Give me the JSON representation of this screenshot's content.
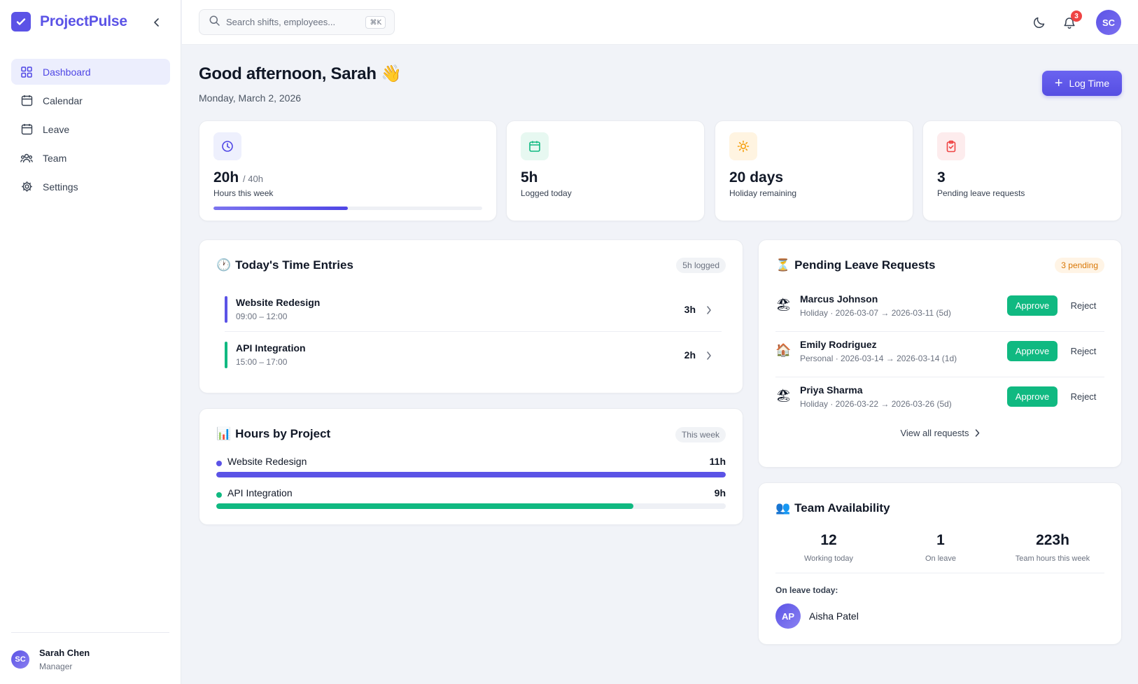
{
  "app": {
    "name": "ProjectPulse"
  },
  "sidebar": {
    "items": [
      {
        "label": "Dashboard",
        "icon": "grid-icon",
        "active": true
      },
      {
        "label": "Calendar",
        "icon": "calendar-icon"
      },
      {
        "label": "Leave",
        "icon": "calendar-icon"
      },
      {
        "label": "Team",
        "icon": "users-icon"
      },
      {
        "label": "Settings",
        "icon": "gear-icon"
      }
    ],
    "user": {
      "initials": "SC",
      "name": "Sarah Chen",
      "role": "Manager"
    }
  },
  "topbar": {
    "search_placeholder": "Search shifts, employees...",
    "shortcut": "⌘K",
    "notification_count": "3",
    "avatar_initials": "SC"
  },
  "header": {
    "greeting": "Good afternoon, Sarah 👋",
    "date": "Monday, March 2, 2026",
    "log_time_label": "Log Time"
  },
  "stats": [
    {
      "value": "20h",
      "sub": "/ 40h",
      "label": "Hours this week",
      "progress": 0.5,
      "color": "#4f46e5",
      "bg": "#eef0fd"
    },
    {
      "value": "5h",
      "sub": "",
      "label": "Logged today",
      "color": "#10b981",
      "bg": "#e7f8f1"
    },
    {
      "value": "20 days",
      "sub": "",
      "label": "Holiday remaining",
      "color": "#f59e0b",
      "bg": "#fff4e1"
    },
    {
      "value": "3",
      "sub": "",
      "label": "Pending leave requests",
      "color": "#ef4444",
      "bg": "#fdeced"
    }
  ],
  "time_entries": {
    "title": "Today's Time Entries",
    "emoji": "🕐",
    "badge": "5h logged",
    "entries": [
      {
        "name": "Website Redesign",
        "time": "09:00 – 12:00",
        "hours": "3h",
        "color": "#5b53e6"
      },
      {
        "name": "API Integration",
        "time": "15:00 – 17:00",
        "hours": "2h",
        "color": "#10b981"
      }
    ]
  },
  "hours_by_project": {
    "title": "Hours by Project",
    "emoji": "📊",
    "badge": "This week",
    "projects": [
      {
        "name": "Website Redesign",
        "hours": "11h",
        "fraction": 1.0,
        "color": "#5b53e6"
      },
      {
        "name": "API Integration",
        "hours": "9h",
        "fraction": 0.818,
        "color": "#10b981"
      }
    ]
  },
  "pending_leave": {
    "title": "Pending Leave Requests",
    "emoji": "⏳",
    "badge": "3 pending",
    "approve_label": "Approve",
    "reject_label": "Reject",
    "requests": [
      {
        "emoji": "🏖",
        "name": "Marcus Johnson",
        "detail": "Holiday · 2026-03-07 → 2026-03-11 (5d)"
      },
      {
        "emoji": "🏠",
        "name": "Emily Rodriguez",
        "detail": "Personal · 2026-03-14 → 2026-03-14 (1d)"
      },
      {
        "emoji": "🏖",
        "name": "Priya Sharma",
        "detail": "Holiday · 2026-03-22 → 2026-03-26 (5d)"
      }
    ],
    "view_all": "View all requests"
  },
  "team_availability": {
    "title": "Team Availability",
    "emoji": "👥",
    "stats": [
      {
        "value": "12",
        "label": "Working today"
      },
      {
        "value": "1",
        "label": "On leave"
      },
      {
        "value": "223h",
        "label": "Team hours this week"
      }
    ],
    "on_leave_label": "On leave today:",
    "on_leave": [
      {
        "initials": "AP",
        "name": "Aisha Patel"
      }
    ]
  }
}
